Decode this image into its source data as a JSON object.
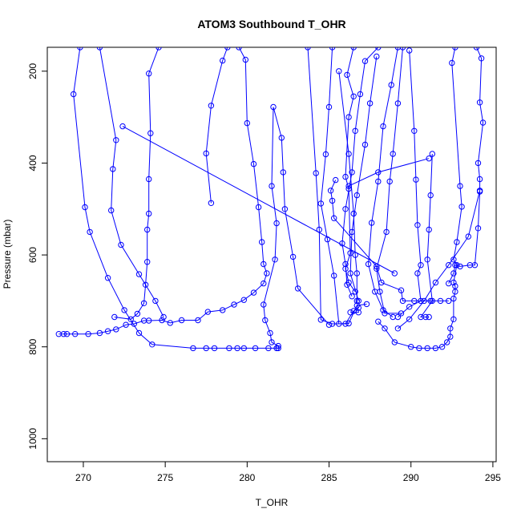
{
  "chart_data": {
    "type": "line",
    "title": "ATOM3 Southbound T_OHR",
    "xlabel": "T_OHR",
    "ylabel": "Pressure (mbar)",
    "xlim": [
      267.8,
      295.2
    ],
    "ylim": [
      1050,
      148
    ],
    "y_reversed": true,
    "x_ticks": [
      270,
      275,
      280,
      285,
      290,
      295
    ],
    "y_ticks": [
      200,
      400,
      600,
      800,
      1000
    ],
    "grid": false,
    "legend": "none",
    "series_color": "#0000ff",
    "marker": "open-circle",
    "series": [
      {
        "points": [
          [
            268.5,
            772
          ],
          [
            268.8,
            772
          ],
          [
            269.0,
            772
          ],
          [
            269.5,
            772
          ],
          [
            270.3,
            772
          ],
          [
            271.0,
            770
          ],
          [
            271.5,
            766
          ],
          [
            272.0,
            762
          ],
          [
            272.6,
            752
          ],
          [
            273.1,
            750
          ],
          [
            273.7,
            743
          ],
          [
            274.0,
            743
          ],
          [
            274.8,
            742
          ],
          [
            275.3,
            748
          ],
          [
            276.0,
            742
          ],
          [
            277.0,
            742
          ],
          [
            277.6,
            724
          ],
          [
            278.5,
            720
          ],
          [
            279.2,
            708
          ],
          [
            279.8,
            698
          ],
          [
            280.4,
            682
          ],
          [
            281.0,
            662
          ],
          [
            281.2,
            640
          ],
          [
            281.0,
            620
          ],
          [
            280.9,
            572
          ],
          [
            280.7,
            496
          ],
          [
            280.4,
            402
          ],
          [
            280.0,
            313
          ],
          [
            279.9,
            175
          ],
          [
            279.5,
            148
          ]
        ]
      },
      {
        "points": [
          [
            269.8,
            148
          ],
          [
            269.4,
            250
          ],
          [
            270.1,
            496
          ],
          [
            270.4,
            550
          ],
          [
            271.5,
            650
          ],
          [
            272.5,
            720
          ],
          [
            273.4,
            770
          ],
          [
            274.2,
            795
          ],
          [
            276.7,
            803
          ],
          [
            277.5,
            803
          ],
          [
            278.0,
            803
          ],
          [
            278.9,
            803
          ],
          [
            279.4,
            803
          ],
          [
            279.8,
            803
          ],
          [
            280.5,
            803
          ],
          [
            281.3,
            803
          ],
          [
            281.8,
            803
          ],
          [
            281.9,
            803
          ],
          [
            281.9,
            798
          ],
          [
            281.5,
            790
          ],
          [
            281.4,
            770
          ],
          [
            281.1,
            742
          ],
          [
            281.0,
            708
          ],
          [
            281.7,
            610
          ],
          [
            281.8,
            531
          ],
          [
            281.5,
            450
          ],
          [
            281.6,
            278
          ],
          [
            282.1,
            345
          ],
          [
            282.2,
            420
          ],
          [
            282.3,
            500
          ],
          [
            282.8,
            604
          ],
          [
            283.1,
            673
          ],
          [
            285.0,
            752
          ]
        ]
      },
      {
        "points": [
          [
            274.6,
            148
          ],
          [
            274.0,
            205
          ],
          [
            274.1,
            335
          ],
          [
            274.0,
            435
          ],
          [
            274.0,
            510
          ],
          [
            273.9,
            545
          ],
          [
            273.9,
            615
          ],
          [
            273.8,
            665
          ],
          [
            273.7,
            705
          ],
          [
            273.3,
            728
          ],
          [
            272.9,
            740
          ],
          [
            271.9,
            735
          ]
        ]
      },
      {
        "points": [
          [
            271.0,
            148
          ],
          [
            272.0,
            350
          ],
          [
            271.8,
            413
          ],
          [
            271.7,
            503
          ],
          [
            272.3,
            578
          ],
          [
            273.4,
            642
          ],
          [
            274.4,
            700
          ],
          [
            274.9,
            735
          ]
        ]
      },
      {
        "points": [
          [
            278.8,
            148
          ],
          [
            278.5,
            177
          ],
          [
            277.8,
            275
          ],
          [
            277.5,
            379
          ],
          [
            277.8,
            487
          ]
        ]
      },
      {
        "points": [
          [
            272.4,
            320
          ],
          [
            289.0,
            640
          ]
        ]
      },
      {
        "points": [
          [
            283.7,
            148
          ],
          [
            284.2,
            422
          ],
          [
            284.4,
            545
          ],
          [
            284.5,
            741
          ],
          [
            285.2,
            750
          ],
          [
            286.0,
            750
          ],
          [
            286.5,
            722
          ],
          [
            286.8,
            715
          ]
        ]
      },
      {
        "points": [
          [
            285.2,
            148
          ],
          [
            285.0,
            278
          ],
          [
            284.8,
            381
          ],
          [
            284.5,
            488
          ],
          [
            284.9,
            566
          ],
          [
            285.3,
            645
          ],
          [
            285.6,
            750
          ],
          [
            286.2,
            749
          ],
          [
            286.7,
            710
          ],
          [
            287.3,
            707
          ]
        ]
      },
      {
        "points": [
          [
            285.6,
            200
          ],
          [
            286.2,
            380
          ],
          [
            286.5,
            510
          ],
          [
            286.6,
            600
          ],
          [
            286.7,
            640
          ],
          [
            286.7,
            700
          ],
          [
            286.8,
            725
          ],
          [
            286.3,
            725
          ]
        ]
      },
      {
        "points": [
          [
            286.5,
            148
          ],
          [
            286.1,
            208
          ],
          [
            286.5,
            255
          ],
          [
            286.2,
            300
          ],
          [
            286.0,
            430
          ],
          [
            286.2,
            456
          ],
          [
            286.3,
            596
          ],
          [
            286.0,
            630
          ],
          [
            286.2,
            660
          ],
          [
            286.6,
            680
          ]
        ]
      },
      {
        "points": [
          [
            288.0,
            148
          ],
          [
            287.2,
            178
          ],
          [
            286.9,
            250
          ],
          [
            286.6,
            330
          ],
          [
            286.4,
            420
          ],
          [
            286.0,
            500
          ],
          [
            285.8,
            575
          ],
          [
            286.0,
            620
          ],
          [
            286.1,
            665
          ],
          [
            286.4,
            690
          ]
        ]
      },
      {
        "points": [
          [
            287.9,
            168
          ],
          [
            287.5,
            270
          ],
          [
            287.2,
            360
          ],
          [
            286.7,
            470
          ],
          [
            286.4,
            550
          ],
          [
            286.3,
            640
          ],
          [
            286.8,
            700
          ]
        ]
      },
      {
        "points": [
          [
            289.2,
            148
          ],
          [
            288.8,
            230
          ],
          [
            288.3,
            320
          ],
          [
            288.0,
            440
          ],
          [
            287.6,
            530
          ],
          [
            287.4,
            620
          ],
          [
            287.8,
            680
          ],
          [
            288.3,
            720
          ],
          [
            288.9,
            735
          ]
        ]
      },
      {
        "points": [
          [
            289.5,
            148
          ],
          [
            289.2,
            270
          ],
          [
            288.9,
            380
          ],
          [
            288.7,
            440
          ],
          [
            288.5,
            550
          ],
          [
            287.9,
            630
          ],
          [
            288.1,
            680
          ],
          [
            288.4,
            727
          ],
          [
            289.4,
            727
          ]
        ]
      },
      {
        "points": [
          [
            289.9,
            155
          ],
          [
            290.2,
            330
          ],
          [
            290.3,
            436
          ],
          [
            290.4,
            535
          ],
          [
            290.6,
            622
          ],
          [
            290.4,
            640
          ],
          [
            290.6,
            700
          ],
          [
            289.9,
            713
          ],
          [
            289.2,
            735
          ]
        ]
      },
      {
        "points": [
          [
            291.3,
            380
          ],
          [
            291.2,
            470
          ],
          [
            291.1,
            545
          ],
          [
            291.0,
            610
          ],
          [
            291.3,
            700
          ],
          [
            290.6,
            735
          ],
          [
            290.9,
            735
          ],
          [
            291.1,
            735
          ]
        ]
      },
      {
        "points": [
          [
            285.4,
            437
          ],
          [
            285.1,
            460
          ],
          [
            285.2,
            482
          ],
          [
            285.3,
            520
          ],
          [
            287.9,
            625
          ],
          [
            288.2,
            660
          ],
          [
            289.4,
            677
          ],
          [
            289.5,
            700
          ],
          [
            290.2,
            700
          ],
          [
            291.2,
            700
          ],
          [
            291.8,
            700
          ],
          [
            292.3,
            700
          ]
        ]
      },
      {
        "points": [
          [
            286.2,
            450
          ],
          [
            288.0,
            420
          ],
          [
            291.1,
            390
          ]
        ]
      },
      {
        "points": [
          [
            292.7,
            148
          ],
          [
            292.5,
            182
          ],
          [
            293.0,
            450
          ],
          [
            293.1,
            495
          ],
          [
            292.8,
            572
          ],
          [
            292.6,
            610
          ],
          [
            292.8,
            622
          ],
          [
            292.6,
            660
          ],
          [
            292.7,
            668
          ],
          [
            292.7,
            680
          ],
          [
            292.6,
            695
          ],
          [
            292.6,
            740
          ],
          [
            292.4,
            760
          ],
          [
            292.4,
            778
          ],
          [
            292.2,
            790
          ],
          [
            291.9,
            800
          ],
          [
            291.5,
            803
          ],
          [
            291.0,
            803
          ],
          [
            290.5,
            803
          ],
          [
            290.0,
            800
          ],
          [
            289.0,
            790
          ],
          [
            288.4,
            760
          ],
          [
            288.0,
            745
          ]
        ]
      },
      {
        "points": [
          [
            294.0,
            148
          ],
          [
            294.3,
            172
          ],
          [
            294.2,
            268
          ],
          [
            294.4,
            312
          ],
          [
            294.1,
            400
          ],
          [
            294.2,
            435
          ],
          [
            294.2,
            462
          ],
          [
            294.1,
            542
          ],
          [
            293.9,
            622
          ],
          [
            293.6,
            622
          ],
          [
            293.0,
            625
          ],
          [
            292.7,
            622
          ],
          [
            292.6,
            640
          ],
          [
            292.3,
            662
          ]
        ]
      },
      {
        "points": [
          [
            294.2,
            460
          ],
          [
            293.5,
            560
          ],
          [
            292.3,
            622
          ],
          [
            291.5,
            660
          ],
          [
            290.8,
            700
          ],
          [
            289.9,
            740
          ],
          [
            289.2,
            760
          ]
        ]
      }
    ]
  }
}
